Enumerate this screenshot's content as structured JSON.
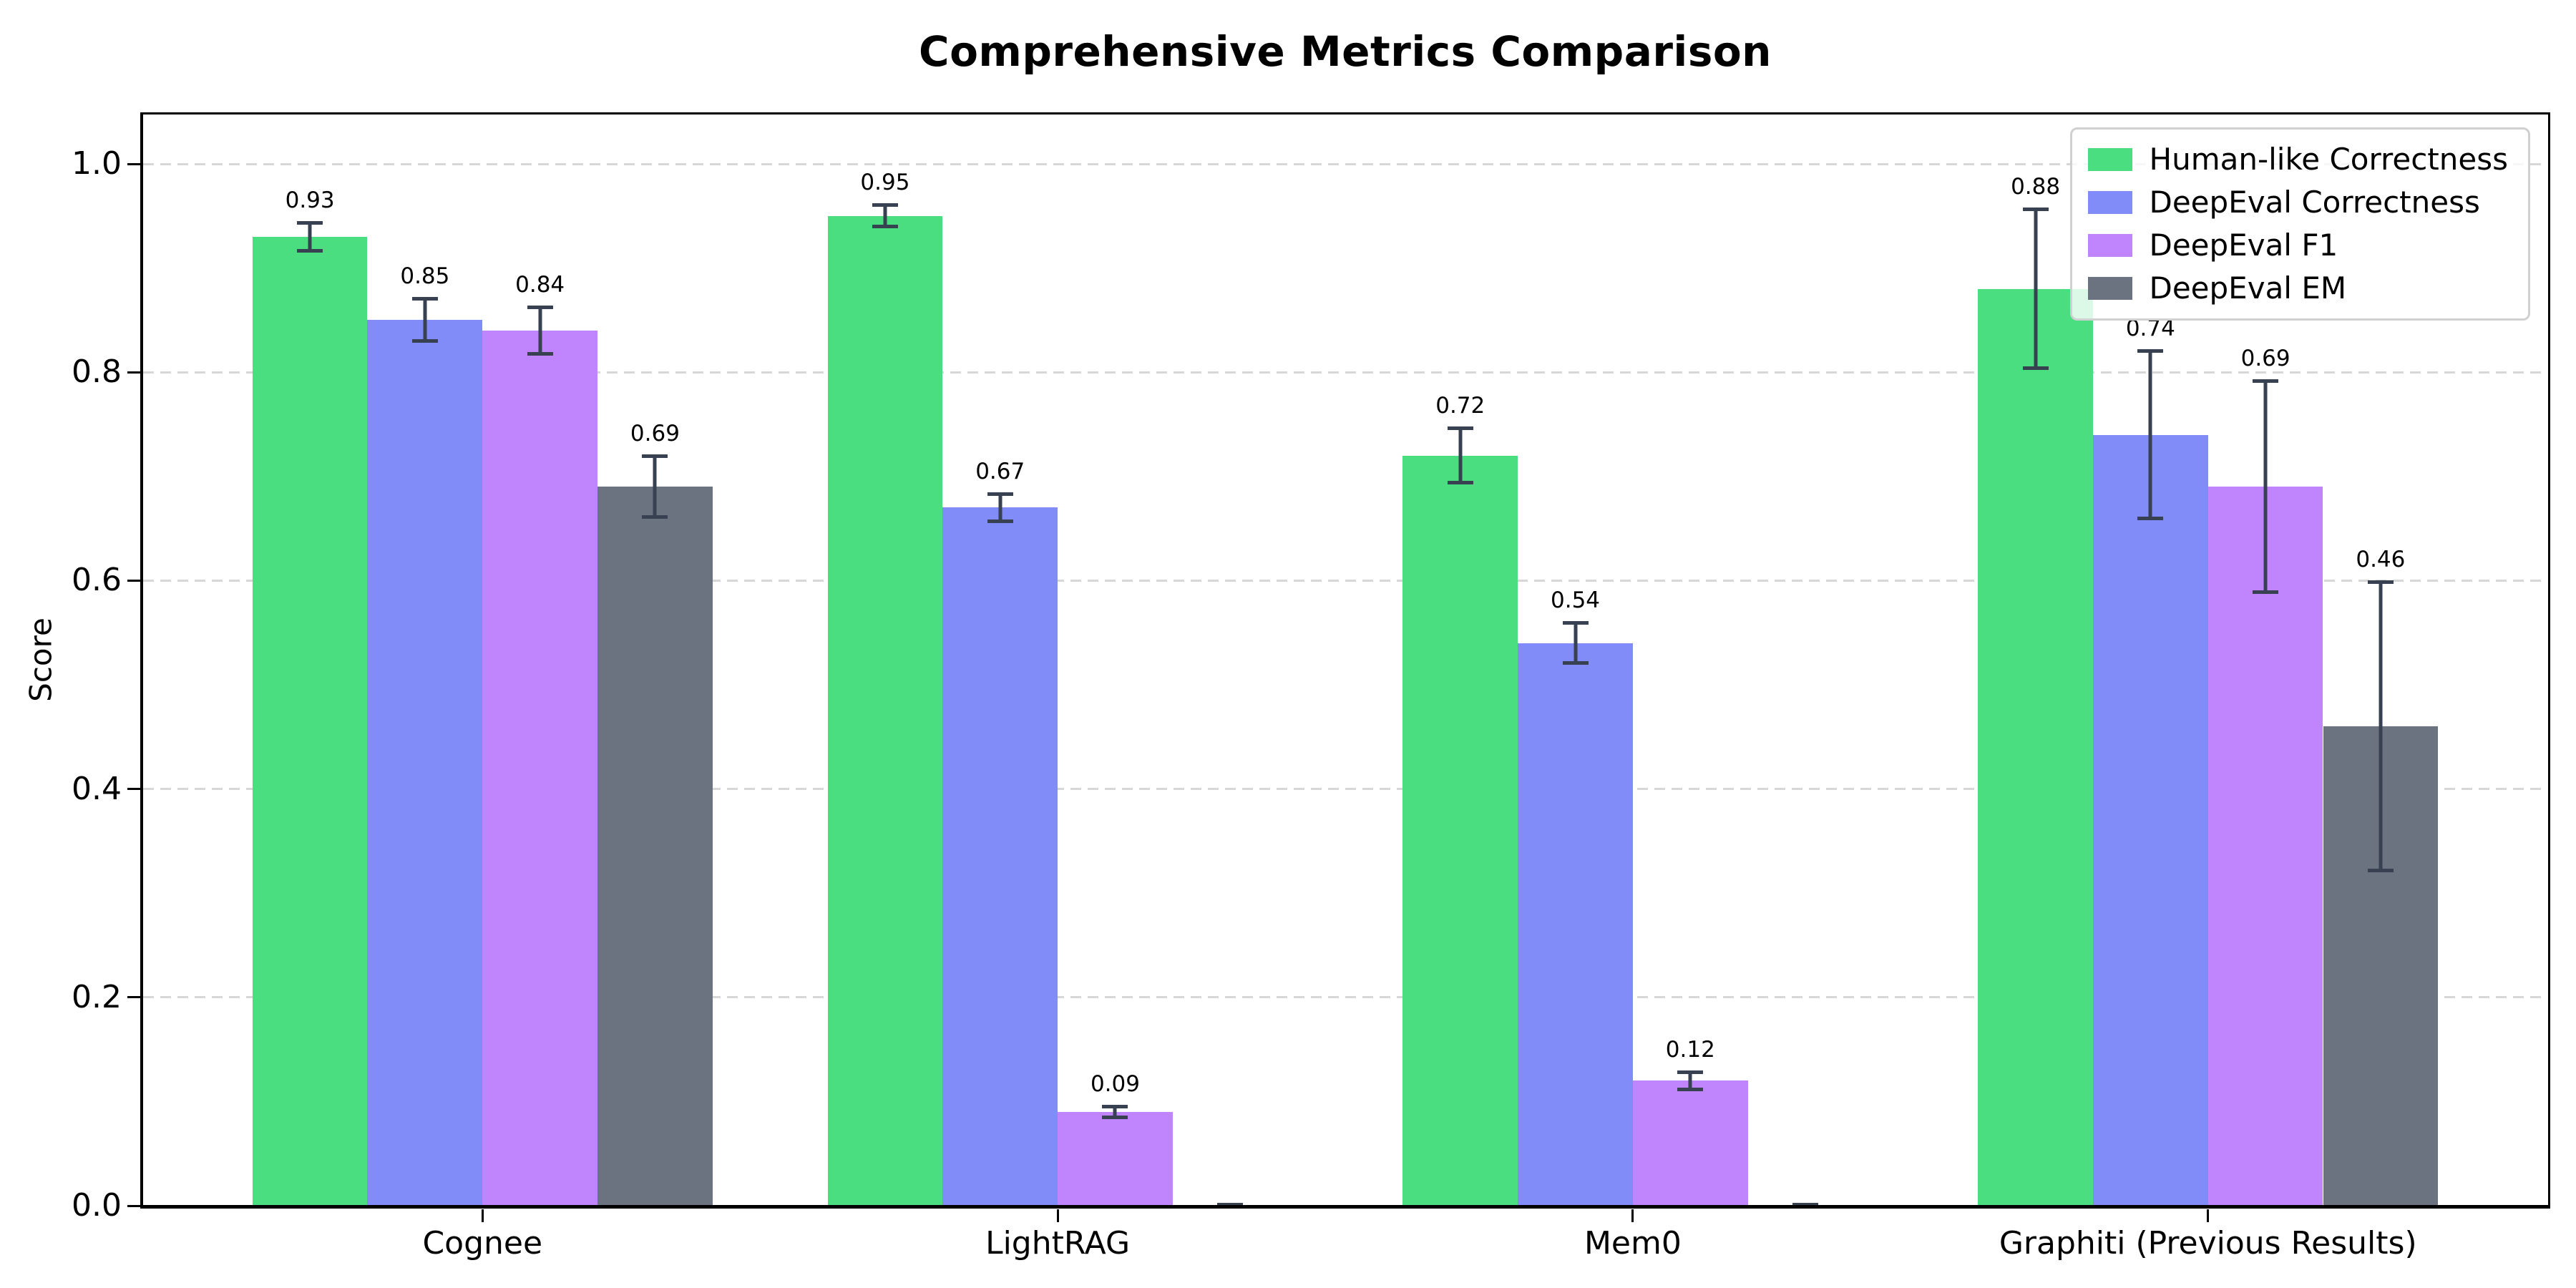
{
  "chart_data": {
    "type": "bar",
    "title": "Comprehensive Metrics Comparison",
    "ylabel": "Score",
    "xlabel": "",
    "categories": [
      "Cognee",
      "LightRAG",
      "Mem0",
      "Graphiti (Previous Results)"
    ],
    "series": [
      {
        "name": "Human-like Correctness",
        "color": "#4ade80",
        "values": [
          0.93,
          0.95,
          0.72,
          0.88
        ],
        "errors": [
          0.015,
          0.012,
          0.028,
          0.078
        ],
        "labels": [
          "0.93",
          "0.95",
          "0.72",
          "0.88"
        ]
      },
      {
        "name": "DeepEval Correctness",
        "color": "#818cf8",
        "values": [
          0.85,
          0.67,
          0.54,
          0.74
        ],
        "errors": [
          0.022,
          0.015,
          0.021,
          0.082
        ],
        "labels": [
          "0.85",
          "0.67",
          "0.54",
          "0.74"
        ]
      },
      {
        "name": "DeepEval F1",
        "color": "#c084fc",
        "values": [
          0.84,
          0.09,
          0.12,
          0.69
        ],
        "errors": [
          0.024,
          0.007,
          0.01,
          0.103
        ],
        "labels": [
          "0.84",
          "0.09",
          "0.12",
          "0.69"
        ]
      },
      {
        "name": "DeepEval EM",
        "color": "#6b7280",
        "values": [
          0.69,
          0.0,
          0.0,
          0.46
        ],
        "errors": [
          0.031,
          0.003,
          0.003,
          0.14
        ],
        "labels": [
          "0.69",
          "",
          "",
          "0.46"
        ]
      }
    ],
    "yticks": {
      "values": [
        0.0,
        0.2,
        0.4,
        0.6,
        0.8,
        1.0
      ],
      "labels": [
        "0.0",
        "0.2",
        "0.4",
        "0.6",
        "0.8",
        "1.0"
      ]
    },
    "ylim": [
      0,
      1.047
    ],
    "grid": "horizontal-dashed",
    "legend_position": "upper-right",
    "colors": {
      "error_bar": "#374151",
      "gridline": "#d7d7d7",
      "axis": "#000000",
      "background": "#ffffff"
    }
  }
}
